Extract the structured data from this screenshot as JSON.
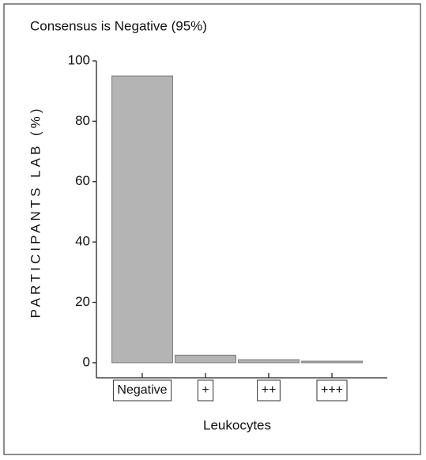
{
  "chart_data": {
    "type": "bar",
    "title": "Consensus is Negative  (95%)",
    "x_label": "Leukocytes",
    "y_label": "PARTICIPANTS LAB (%)",
    "categories": [
      "Negative",
      "+",
      "++",
      "+++"
    ],
    "values": [
      95,
      2.5,
      1,
      0.5
    ],
    "color": "#b4b4b4",
    "ylim": [
      -5,
      100
    ],
    "yticks": [
      0,
      20,
      40,
      60,
      80,
      100
    ]
  }
}
